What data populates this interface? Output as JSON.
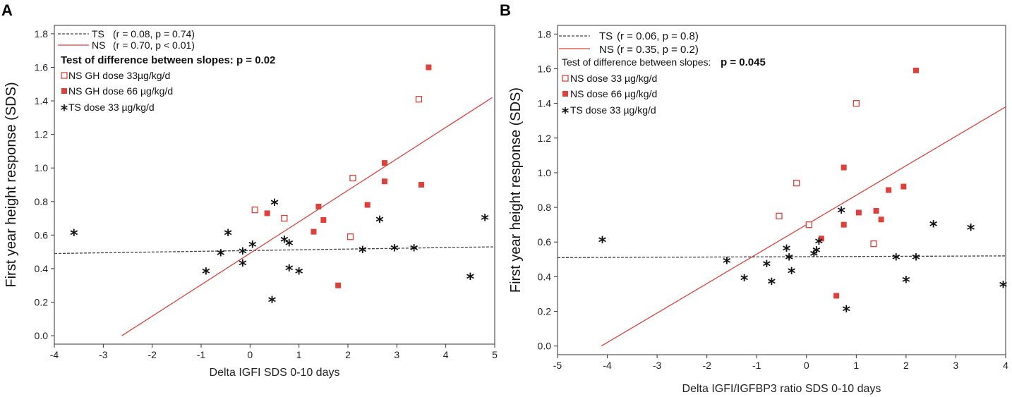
{
  "chart_data": [
    {
      "type": "scatter",
      "panel_label": "A",
      "xlabel": "Delta IGFI SDS 0-10 days",
      "ylabel": "First year height response (SDS)",
      "xlim": [
        -4,
        5
      ],
      "ylim": [
        -0.05,
        1.85
      ],
      "xticks": [
        "-4",
        "-3",
        "-2",
        "-1",
        "0",
        "1",
        "2",
        "3",
        "4",
        "5"
      ],
      "yticks": [
        "0.0",
        "0.2",
        "0.4",
        "0.6",
        "0.8",
        "1.0",
        "1.2",
        "1.4",
        "1.6",
        "1.8"
      ],
      "legend": {
        "lines": [
          {
            "name": "TS",
            "stats": "(r = 0.08,  p = 0.74)",
            "color": "#444444",
            "dash": true
          },
          {
            "name": "NS",
            "stats": "(r = 0.70,  p < 0.01)",
            "color": "#e0403a",
            "dash": false
          }
        ],
        "slope_test": "Test of difference between slopes: p = 0.02",
        "markers": [
          {
            "label": "NS GH dose 33µg/kg/d",
            "marker": "open-square"
          },
          {
            "label": "NS GH dose 66 µg/kg/d",
            "marker": "filled-square"
          },
          {
            "label": "TS dose 33 µg/kg/d",
            "marker": "star"
          }
        ]
      },
      "regression_lines": [
        {
          "name": "TS",
          "x": [
            -4,
            5
          ],
          "y": [
            0.49,
            0.53
          ]
        },
        {
          "name": "NS",
          "x": [
            -2.62,
            4.95
          ],
          "y": [
            0.0,
            1.42
          ]
        }
      ],
      "series": [
        {
          "name": "NS GH dose 33µg/kg/d",
          "marker": "open-square",
          "points": [
            [
              0.1,
              0.75
            ],
            [
              0.7,
              0.7
            ],
            [
              2.1,
              0.94
            ],
            [
              2.05,
              0.59
            ],
            [
              3.45,
              1.41
            ]
          ]
        },
        {
          "name": "NS GH dose 66 µg/kg/d",
          "marker": "filled-square",
          "points": [
            [
              0.35,
              0.73
            ],
            [
              1.4,
              0.77
            ],
            [
              1.3,
              0.62
            ],
            [
              1.5,
              0.69
            ],
            [
              1.8,
              0.3
            ],
            [
              2.4,
              0.78
            ],
            [
              2.75,
              1.03
            ],
            [
              2.75,
              0.92
            ],
            [
              3.5,
              0.9
            ],
            [
              3.65,
              1.6
            ]
          ]
        },
        {
          "name": "TS dose 33 µg/kg/d",
          "marker": "star",
          "points": [
            [
              -3.6,
              0.61
            ],
            [
              -0.9,
              0.38
            ],
            [
              -0.6,
              0.49
            ],
            [
              -0.45,
              0.61
            ],
            [
              -0.15,
              0.5
            ],
            [
              -0.15,
              0.43
            ],
            [
              0.05,
              0.54
            ],
            [
              0.45,
              0.21
            ],
            [
              0.5,
              0.79
            ],
            [
              0.7,
              0.57
            ],
            [
              0.8,
              0.55
            ],
            [
              0.8,
              0.4
            ],
            [
              1.0,
              0.38
            ],
            [
              2.3,
              0.51
            ],
            [
              2.65,
              0.69
            ],
            [
              2.95,
              0.52
            ],
            [
              3.35,
              0.52
            ],
            [
              4.5,
              0.35
            ],
            [
              4.8,
              0.7
            ]
          ]
        }
      ]
    },
    {
      "type": "scatter",
      "panel_label": "B",
      "xlabel": "Delta IGFI/IGFBP3 ratio SDS 0-10 days",
      "ylabel": "First year height response (SDS)",
      "xlim": [
        -5,
        4
      ],
      "ylim": [
        -0.05,
        1.85
      ],
      "xticks": [
        "-5",
        "-4",
        "-3",
        "-2",
        "-1",
        "0",
        "1",
        "2",
        "3",
        "4"
      ],
      "yticks": [
        "0.0",
        "0.2",
        "0.4",
        "0.6",
        "0.8",
        "1.0",
        "1.2",
        "1.4",
        "1.6",
        "1.8"
      ],
      "legend": {
        "lines": [
          {
            "name": "TS",
            "stats": "(r = 0.06, p = 0.8)",
            "color": "#444444",
            "dash": true
          },
          {
            "name": "NS",
            "stats": "(r = 0.35, p = 0.2)",
            "color": "#e0403a",
            "dash": false
          }
        ],
        "slope_test": "Test of difference between slopes:",
        "slope_p": "p = 0.045",
        "markers": [
          {
            "label": "NS dose 33 µg/kg/d",
            "marker": "open-square"
          },
          {
            "label": "NS dose 66 µg/kg/d",
            "marker": "filled-square"
          },
          {
            "label": "TS dose 33 µg/kg/d",
            "marker": "star"
          }
        ]
      },
      "regression_lines": [
        {
          "name": "TS",
          "x": [
            -5,
            4
          ],
          "y": [
            0.51,
            0.52
          ]
        },
        {
          "name": "NS",
          "x": [
            -4.12,
            4.0
          ],
          "y": [
            0.0,
            1.38
          ]
        }
      ],
      "series": [
        {
          "name": "NS dose 33 µg/kg/d",
          "marker": "open-square",
          "points": [
            [
              -0.55,
              0.75
            ],
            [
              -0.2,
              0.94
            ],
            [
              0.05,
              0.7
            ],
            [
              1.0,
              1.4
            ],
            [
              1.35,
              0.59
            ]
          ]
        },
        {
          "name": "NS dose 66 µg/kg/d",
          "marker": "filled-square",
          "points": [
            [
              0.3,
              0.62
            ],
            [
              0.6,
              0.29
            ],
            [
              0.75,
              1.03
            ],
            [
              0.75,
              0.7
            ],
            [
              1.05,
              0.77
            ],
            [
              1.4,
              0.78
            ],
            [
              1.5,
              0.73
            ],
            [
              1.65,
              0.9
            ],
            [
              1.95,
              0.92
            ],
            [
              2.2,
              1.59
            ]
          ]
        },
        {
          "name": "TS dose 33 µg/kg/d",
          "marker": "star",
          "points": [
            [
              -4.1,
              0.61
            ],
            [
              -1.6,
              0.49
            ],
            [
              -1.25,
              0.39
            ],
            [
              -0.8,
              0.47
            ],
            [
              -0.7,
              0.37
            ],
            [
              -0.4,
              0.56
            ],
            [
              -0.35,
              0.51
            ],
            [
              -0.3,
              0.43
            ],
            [
              0.15,
              0.53
            ],
            [
              0.2,
              0.55
            ],
            [
              0.25,
              0.6
            ],
            [
              0.7,
              0.78
            ],
            [
              0.8,
              0.21
            ],
            [
              1.8,
              0.51
            ],
            [
              2.0,
              0.38
            ],
            [
              2.2,
              0.51
            ],
            [
              2.55,
              0.7
            ],
            [
              3.3,
              0.68
            ],
            [
              3.95,
              0.35
            ]
          ]
        }
      ]
    }
  ]
}
